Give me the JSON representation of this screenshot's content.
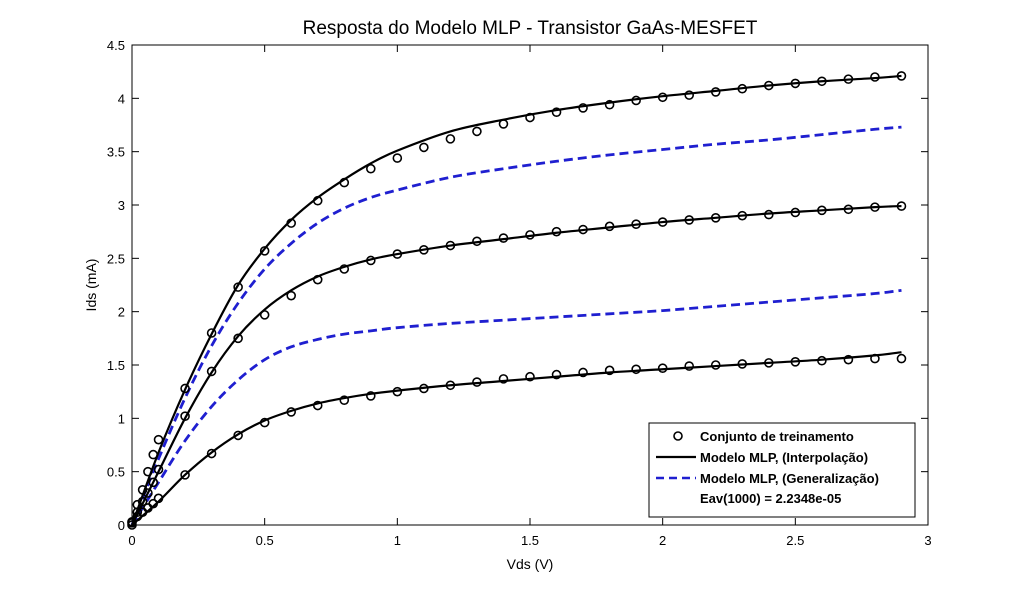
{
  "chart_data": {
    "type": "line",
    "title": "Resposta do Modelo MLP - Transistor GaAs-MESFET",
    "xlabel": "Vds (V)",
    "ylabel": "Ids (mA)",
    "xlim": [
      0,
      3
    ],
    "ylim": [
      0,
      4.5
    ],
    "xticks": [
      "0",
      "0.5",
      "1",
      "1.5",
      "2",
      "2.5",
      "3"
    ],
    "yticks": [
      "0",
      "0.5",
      "1",
      "1.5",
      "2",
      "2.5",
      "3",
      "3.5",
      "4",
      "4.5"
    ],
    "grid": false,
    "legend_position": "bottom-right",
    "legend": {
      "training_label": "Conjunto de treinamento",
      "interp_label": "Modelo MLP, (Interpolação)",
      "gen_label": "Modelo MLP, (Generalização)",
      "annotation": "Eav(1000) = 2.2348e-05"
    },
    "colors": {
      "training": "#000000",
      "interpolation": "#000000",
      "generalization": "#1f1fd0"
    },
    "training_sets": [
      {
        "x": [
          0,
          0.02,
          0.04,
          0.06,
          0.08,
          0.1,
          0.2,
          0.3,
          0.4,
          0.5,
          0.6,
          0.7,
          0.8,
          0.9,
          1.0,
          1.1,
          1.2,
          1.3,
          1.4,
          1.5,
          1.6,
          1.7,
          1.8,
          1.9,
          2.0,
          2.1,
          2.2,
          2.3,
          2.4,
          2.5,
          2.6,
          2.7,
          2.8,
          2.9
        ],
        "y": [
          0,
          0.08,
          0.12,
          0.16,
          0.2,
          0.25,
          0.47,
          0.67,
          0.84,
          0.96,
          1.06,
          1.12,
          1.17,
          1.21,
          1.25,
          1.28,
          1.31,
          1.34,
          1.37,
          1.39,
          1.41,
          1.43,
          1.45,
          1.46,
          1.47,
          1.49,
          1.5,
          1.51,
          1.52,
          1.53,
          1.54,
          1.55,
          1.56,
          1.56
        ]
      },
      {
        "x": [
          0,
          0.02,
          0.04,
          0.06,
          0.08,
          0.1,
          0.2,
          0.3,
          0.4,
          0.5,
          0.6,
          0.7,
          0.8,
          0.9,
          1.0,
          1.1,
          1.2,
          1.3,
          1.4,
          1.5,
          1.6,
          1.7,
          1.8,
          1.9,
          2.0,
          2.1,
          2.2,
          2.3,
          2.4,
          2.5,
          2.6,
          2.7,
          2.8,
          2.9
        ],
        "y": [
          0.02,
          0.12,
          0.22,
          0.3,
          0.4,
          0.52,
          1.02,
          1.44,
          1.75,
          1.97,
          2.15,
          2.3,
          2.4,
          2.48,
          2.54,
          2.58,
          2.62,
          2.66,
          2.69,
          2.72,
          2.75,
          2.77,
          2.8,
          2.82,
          2.84,
          2.86,
          2.88,
          2.9,
          2.91,
          2.93,
          2.95,
          2.96,
          2.98,
          2.99
        ]
      },
      {
        "x": [
          0,
          0.02,
          0.04,
          0.06,
          0.08,
          0.1,
          0.2,
          0.3,
          0.4,
          0.5,
          0.6,
          0.7,
          0.8,
          0.9,
          1.0,
          1.1,
          1.2,
          1.3,
          1.4,
          1.5,
          1.6,
          1.7,
          1.8,
          1.9,
          2.0,
          2.1,
          2.2,
          2.3,
          2.4,
          2.5,
          2.6,
          2.7,
          2.8,
          2.9
        ],
        "y": [
          0.03,
          0.19,
          0.33,
          0.5,
          0.66,
          0.8,
          1.28,
          1.8,
          2.23,
          2.57,
          2.83,
          3.04,
          3.21,
          3.34,
          3.44,
          3.54,
          3.62,
          3.69,
          3.76,
          3.82,
          3.87,
          3.91,
          3.94,
          3.98,
          4.01,
          4.03,
          4.06,
          4.09,
          4.12,
          4.14,
          4.16,
          4.18,
          4.2,
          4.21
        ]
      }
    ],
    "interpolation_series": [
      {
        "x": [
          0,
          0.1,
          0.2,
          0.3,
          0.4,
          0.5,
          0.6,
          0.7,
          0.8,
          0.9,
          1.0,
          1.2,
          1.4,
          1.6,
          1.8,
          2.0,
          2.2,
          2.4,
          2.6,
          2.8,
          2.9
        ],
        "y": [
          0,
          0.22,
          0.47,
          0.68,
          0.85,
          0.98,
          1.07,
          1.14,
          1.19,
          1.23,
          1.26,
          1.31,
          1.35,
          1.39,
          1.43,
          1.46,
          1.49,
          1.52,
          1.55,
          1.59,
          1.62
        ]
      },
      {
        "x": [
          0,
          0.1,
          0.2,
          0.3,
          0.4,
          0.5,
          0.6,
          0.7,
          0.8,
          0.9,
          1.0,
          1.2,
          1.4,
          1.6,
          1.8,
          2.0,
          2.2,
          2.4,
          2.6,
          2.8,
          2.9
        ],
        "y": [
          0,
          0.5,
          1.0,
          1.43,
          1.77,
          2.02,
          2.2,
          2.33,
          2.42,
          2.49,
          2.54,
          2.62,
          2.68,
          2.74,
          2.79,
          2.84,
          2.88,
          2.92,
          2.95,
          2.98,
          2.99
        ]
      },
      {
        "x": [
          0,
          0.1,
          0.2,
          0.3,
          0.4,
          0.5,
          0.6,
          0.7,
          0.8,
          0.9,
          1.0,
          1.2,
          1.4,
          1.6,
          1.8,
          2.0,
          2.2,
          2.4,
          2.6,
          2.8,
          2.9
        ],
        "y": [
          0,
          0.68,
          1.27,
          1.79,
          2.25,
          2.59,
          2.86,
          3.07,
          3.24,
          3.39,
          3.51,
          3.69,
          3.8,
          3.89,
          3.96,
          4.02,
          4.07,
          4.12,
          4.16,
          4.19,
          4.21
        ]
      }
    ],
    "generalization_series": [
      {
        "x": [
          0,
          0.1,
          0.2,
          0.3,
          0.4,
          0.5,
          0.6,
          0.7,
          0.8,
          0.9,
          1.0,
          1.2,
          1.4,
          1.6,
          1.8,
          2.0,
          2.2,
          2.4,
          2.6,
          2.8,
          2.9
        ],
        "y": [
          0,
          0.4,
          0.79,
          1.11,
          1.36,
          1.55,
          1.67,
          1.74,
          1.79,
          1.82,
          1.85,
          1.89,
          1.92,
          1.95,
          1.98,
          2.01,
          2.05,
          2.09,
          2.13,
          2.17,
          2.2
        ]
      },
      {
        "x": [
          0,
          0.1,
          0.2,
          0.3,
          0.4,
          0.5,
          0.6,
          0.7,
          0.8,
          0.9,
          1.0,
          1.2,
          1.4,
          1.6,
          1.8,
          2.0,
          2.2,
          2.4,
          2.6,
          2.8,
          2.9
        ],
        "y": [
          0,
          0.62,
          1.19,
          1.68,
          2.08,
          2.4,
          2.64,
          2.83,
          2.97,
          3.07,
          3.14,
          3.26,
          3.34,
          3.41,
          3.47,
          3.52,
          3.57,
          3.61,
          3.66,
          3.71,
          3.73
        ]
      }
    ]
  }
}
